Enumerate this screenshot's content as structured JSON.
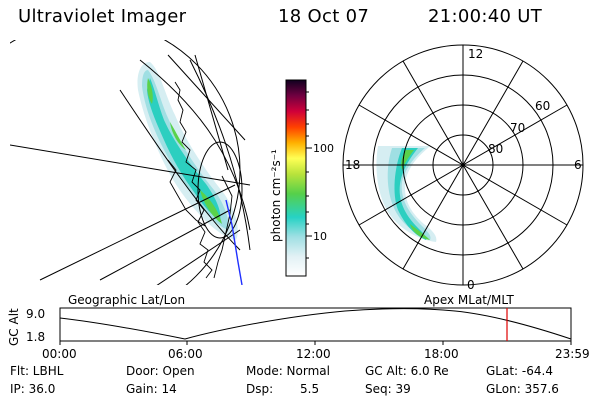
{
  "header": {
    "instrument": "Ultraviolet Imager",
    "date": "18 Oct 07",
    "time": "21:00:40 UT"
  },
  "colorbar": {
    "unit_label": "photon cm⁻²s⁻¹",
    "ticks": [
      "100",
      "10"
    ]
  },
  "polar": {
    "mlt_labels": {
      "top": "12",
      "left": "18",
      "right": "6",
      "bottom": "0"
    },
    "lat_labels": [
      "60",
      "70",
      "80"
    ]
  },
  "panel_labels": {
    "geo": "Geographic Lat/Lon",
    "apex": "Apex MLat/MLT"
  },
  "timeline": {
    "axis_label": "GC Alt",
    "y_ticks": [
      "9.0",
      "1.8"
    ],
    "x_ticks": [
      "00:00",
      "06:00",
      "12:00",
      "18:00",
      "23:59"
    ]
  },
  "footer": {
    "row1": {
      "flt": "Flt: LBHL",
      "door": "Door: Open",
      "mode": "Mode: Normal",
      "gcalt": "GC Alt: 6.0 Re",
      "glat": "GLat: -64.4"
    },
    "row2": {
      "ip": "IP: 36.0",
      "gain": "Gain: 14",
      "dsp_label": "Dsp:",
      "dsp_value": "5.5",
      "seq": "Seq: 39",
      "glon": "GLon: 357.6"
    }
  }
}
